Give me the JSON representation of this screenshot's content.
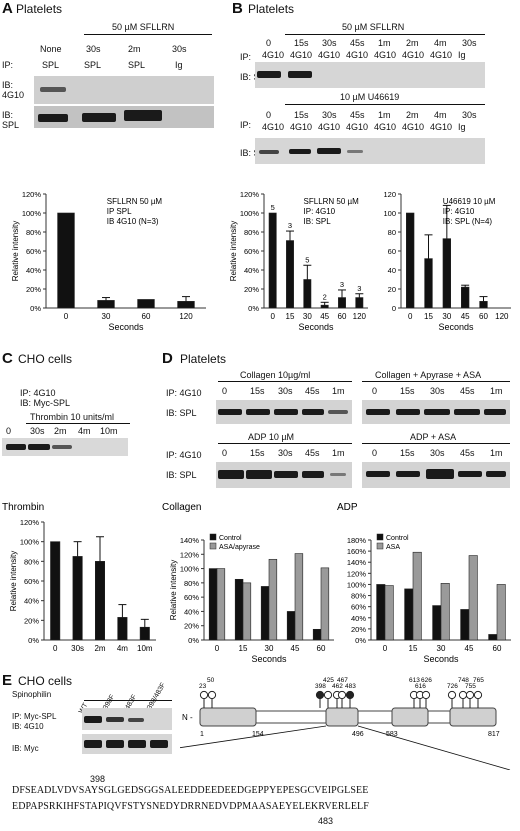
{
  "panel_a": {
    "letter": "A",
    "title": "Platelets",
    "treatment": "50 µM SFLLRN",
    "lanes_ip": [
      "None",
      "30s",
      "2m",
      "30s"
    ],
    "ip_labels": [
      "SPL",
      "SPL",
      "SPL",
      "Ig"
    ],
    "ip_prefix": "IP:",
    "ib1": "IB:\n4G10",
    "ib2": "IB:\nSPL"
  },
  "panel_b": {
    "letter": "B",
    "title": "Platelets",
    "treatment1": "50 µM SFLLRN",
    "treatment2": "10 µM U46619",
    "lanes": [
      "0",
      "15s",
      "30s",
      "45s",
      "1m",
      "2m",
      "4m",
      "30s"
    ],
    "ip_labels": [
      "4G10",
      "4G10",
      "4G10",
      "4G10",
      "4G10",
      "4G10",
      "4G10",
      "Ig"
    ],
    "ip_prefix": "IP:",
    "ib": "IB: SPL"
  },
  "panel_c": {
    "letter": "C",
    "title": "CHO cells",
    "ip": "IP: 4G10",
    "ib": "IB: Myc-SPL",
    "treatment": "Thrombin 10 units/ml",
    "lanes": [
      "0",
      "30s",
      "2m",
      "4m",
      "10m"
    ]
  },
  "panel_d": {
    "letter": "D",
    "title": "Platelets",
    "collagen": "Collagen 10µg/ml",
    "collagen_asa": "Collagen + Apyrase + ASA",
    "adp": "ADP 10 µM",
    "adp_asa": "ADP + ASA",
    "lanes": [
      "0",
      "15s",
      "30s",
      "45s",
      "1m"
    ],
    "ip": "IP: 4G10",
    "ib": "IB: SPL"
  },
  "panel_e": {
    "letter": "E",
    "title": "CHO cells",
    "spinophilin": "Spinophilin",
    "lanes": [
      "WT",
      "Y398F",
      "Y483F",
      "Y398/483F"
    ],
    "ip": "IP: Myc-SPL",
    "ib1": "IB: 4G10",
    "ib2": "IB: Myc",
    "n_term": "N -",
    "domain_numbers": [
      "1",
      "154",
      "496",
      "583",
      "817"
    ],
    "sites_top": [
      "23",
      "50",
      "398",
      "425",
      "462",
      "467",
      "483",
      "613",
      "616",
      "626",
      "726",
      "748",
      "755",
      "765"
    ],
    "site_398": "398",
    "site_483": "483",
    "seq_line1": "DFSEADLVDVSAYSGLGEDSGGSALEEDDEEDEEDGEPPYEPESGCVEIPGLSEE",
    "seq_line2": "EDPAPSRKIHFSTAPIQVFSTYSNEDYDRRNEDVDPMAASAEYELEKRVERLELF"
  },
  "chart_data": [
    {
      "type": "bar",
      "categories": [
        "0",
        "30",
        "60",
        "120"
      ],
      "values": [
        100,
        8,
        9,
        7
      ],
      "errors": [
        0,
        3,
        0,
        5
      ],
      "annotation": [
        "SFLLRN 50 µM",
        "IP SPL",
        "IB 4G10 (N=3)"
      ],
      "xlabel": "Seconds",
      "ylabel": "Relative intensity",
      "ylim": [
        0,
        120
      ],
      "yticks": [
        "0%",
        "20%",
        "40%",
        "60%",
        "80%",
        "100%",
        "120%"
      ]
    },
    {
      "type": "bar",
      "categories": [
        "0",
        "15",
        "30",
        "45",
        "60",
        "120"
      ],
      "values": [
        100,
        71,
        30,
        3,
        11,
        11
      ],
      "errors": [
        0,
        10,
        15,
        3,
        8,
        4
      ],
      "n_labels": [
        "5",
        "3",
        "5",
        "2",
        "3",
        "3"
      ],
      "annotation": [
        "SFLLRN 50 µM",
        "IP: 4G10",
        "IB: SPL"
      ],
      "xlabel": "Seconds",
      "ylabel": "Relative intensity",
      "ylim": [
        0,
        120
      ],
      "yticks": [
        "0%",
        "20%",
        "40%",
        "60%",
        "80%",
        "100%",
        "120%"
      ]
    },
    {
      "type": "bar",
      "categories": [
        "0",
        "15",
        "30",
        "45",
        "60",
        "120"
      ],
      "values": [
        100,
        52,
        73,
        22,
        7,
        0
      ],
      "errors": [
        0,
        25,
        35,
        2,
        5,
        0
      ],
      "annotation": [
        "U46619 10 µM",
        "IP: 4G10",
        "IB: SPL (N=4)"
      ],
      "xlabel": "Seconds",
      "ylabel": "",
      "ylim": [
        0,
        120
      ],
      "yticks": [
        "0",
        "20",
        "40",
        "60",
        "80",
        "100",
        "120"
      ]
    },
    {
      "type": "bar",
      "title": "Thrombin",
      "categories": [
        "0",
        "30s",
        "2m",
        "4m",
        "10m"
      ],
      "values": [
        100,
        85,
        80,
        23,
        13
      ],
      "errors": [
        0,
        15,
        25,
        13,
        8
      ],
      "xlabel": "",
      "ylabel": "Relative intensity",
      "ylim": [
        0,
        120
      ],
      "yticks": [
        "0%",
        "20%",
        "40%",
        "60%",
        "80%",
        "100%",
        "120%"
      ]
    },
    {
      "type": "bar",
      "title": "Collagen",
      "categories": [
        "0",
        "15",
        "30",
        "45",
        "60"
      ],
      "series": [
        {
          "name": "Control",
          "values": [
            100,
            85,
            75,
            40,
            15
          ]
        },
        {
          "name": "ASA/apyrase",
          "values": [
            100,
            80,
            113,
            121,
            101
          ]
        }
      ],
      "xlabel": "Seconds",
      "ylabel": "Relative intensity",
      "ylim": [
        0,
        140
      ],
      "yticks": [
        "0%",
        "20%",
        "40%",
        "60%",
        "80%",
        "100%",
        "120%",
        "140%"
      ],
      "colors": [
        "#111111",
        "#9a9a9a"
      ]
    },
    {
      "type": "bar",
      "title": "ADP",
      "categories": [
        "0",
        "15",
        "30",
        "45",
        "60"
      ],
      "series": [
        {
          "name": "Control",
          "values": [
            100,
            92,
            62,
            55,
            10
          ]
        },
        {
          "name": "ASA",
          "values": [
            98,
            158,
            102,
            152,
            100
          ]
        }
      ],
      "xlabel": "Seconds",
      "ylabel": "",
      "ylim": [
        0,
        180
      ],
      "yticks": [
        "0%",
        "20%",
        "40%",
        "60%",
        "80%",
        "100%",
        "120%",
        "140%",
        "160%",
        "180%"
      ],
      "colors": [
        "#111111",
        "#9a9a9a"
      ]
    }
  ]
}
